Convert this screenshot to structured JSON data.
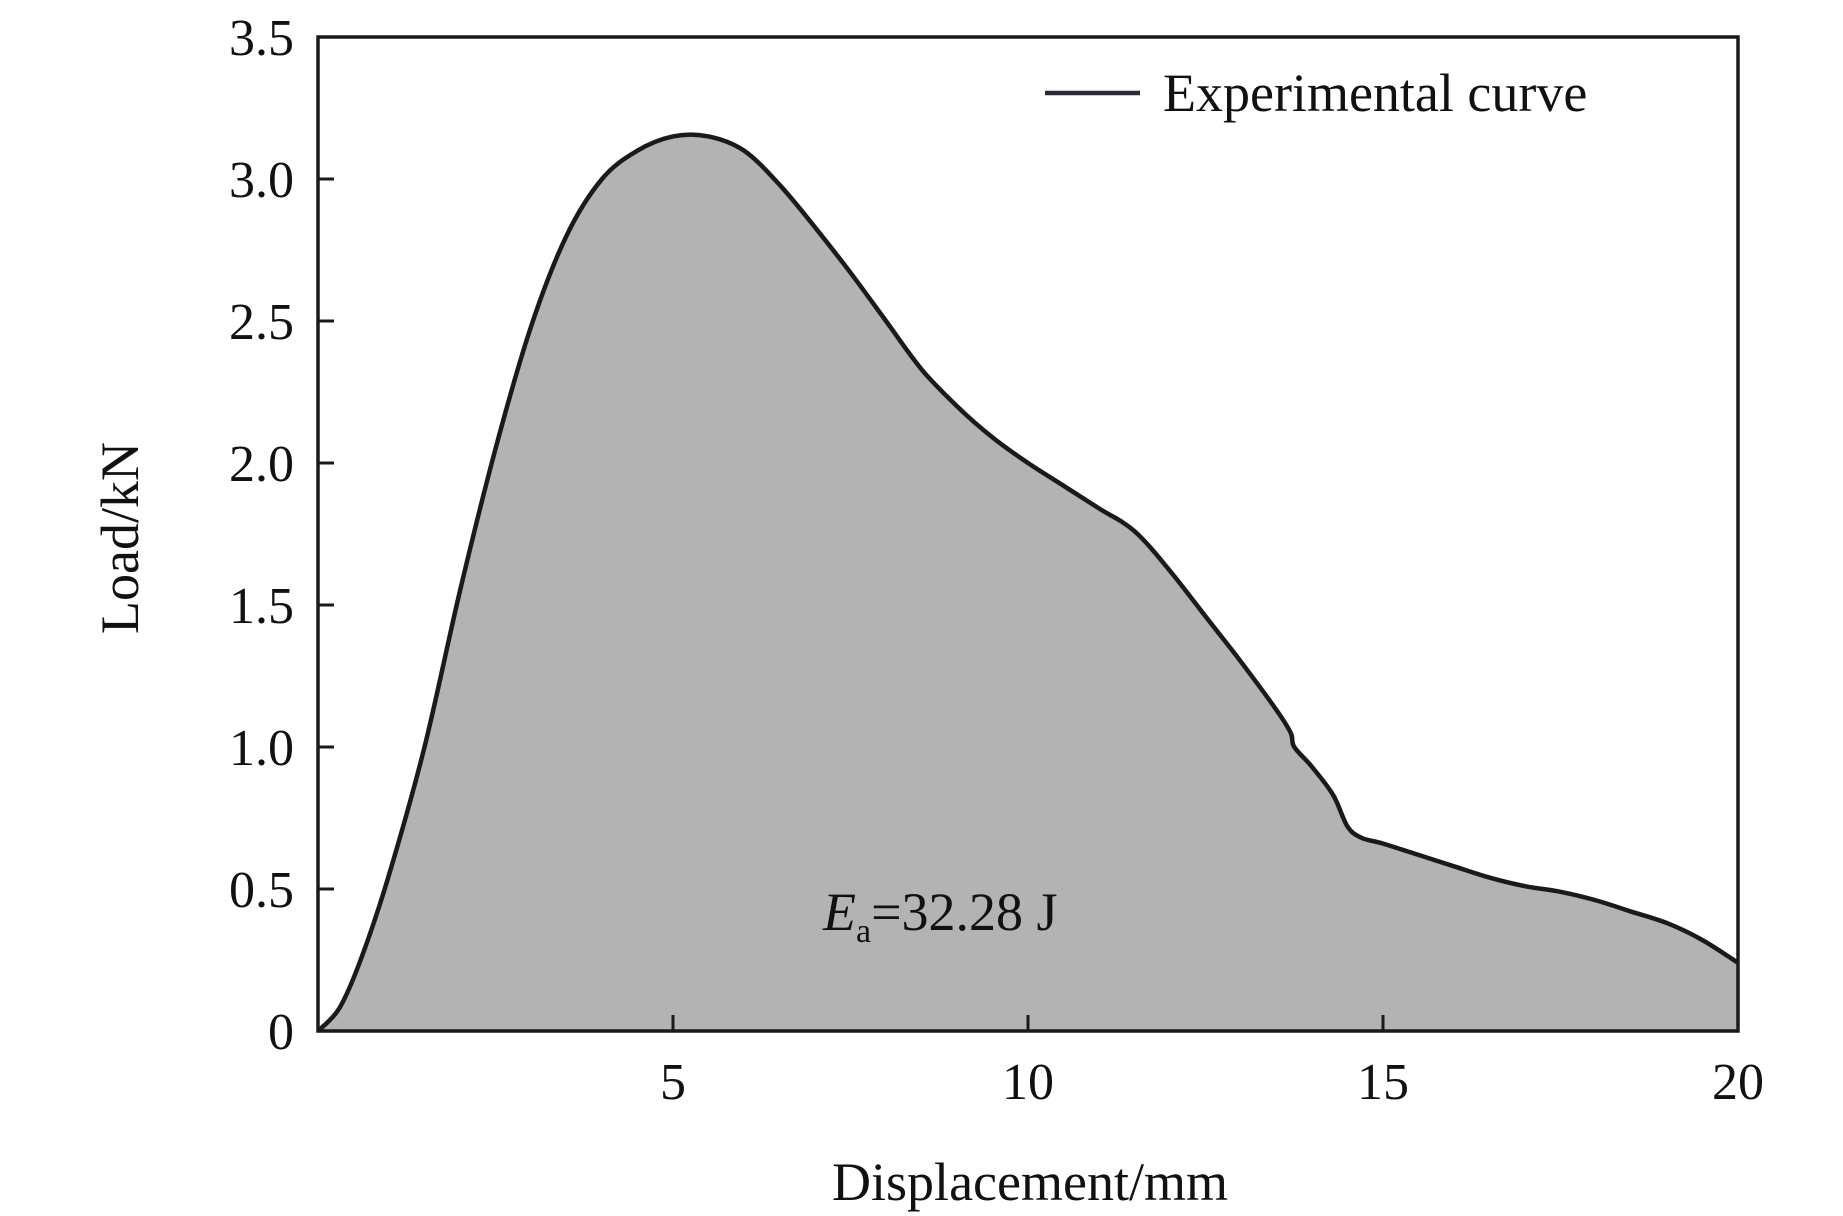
{
  "chart_data": {
    "type": "area",
    "xlabel": "Displacement/mm",
    "ylabel": "Load/kN",
    "xlim": [
      0,
      20
    ],
    "ylim": [
      0,
      3.5
    ],
    "xticks": [
      5,
      10,
      15,
      20
    ],
    "xtick_labels": [
      "5",
      "10",
      "15",
      "20"
    ],
    "yticks": [
      0,
      0.5,
      1.0,
      1.5,
      2.0,
      2.5,
      3.0,
      3.5
    ],
    "ytick_labels": [
      "0",
      "0.5",
      "1.0",
      "1.5",
      "2.0",
      "2.5",
      "3.0",
      "3.5"
    ],
    "grid": false,
    "legend_position": "top-right",
    "annotation": {
      "symbol": "E",
      "subscript": "a",
      "text": "=32.28 J"
    },
    "series": [
      {
        "name": "Experimental curve",
        "x": [
          0,
          0.3,
          0.6,
          1.0,
          1.5,
          2.0,
          2.5,
          3.0,
          3.5,
          4.0,
          4.5,
          5.0,
          5.5,
          6.0,
          6.5,
          7.0,
          7.5,
          8.0,
          8.5,
          9.0,
          9.5,
          10.0,
          10.5,
          11.0,
          11.5,
          12.0,
          12.5,
          13.0,
          13.5,
          13.7,
          13.75,
          14.0,
          14.3,
          14.5,
          14.7,
          15.0,
          15.5,
          16.0,
          16.5,
          17.0,
          17.5,
          18.0,
          18.5,
          19.0,
          19.5,
          20.0
        ],
        "y": [
          0,
          0.08,
          0.25,
          0.55,
          1.0,
          1.55,
          2.05,
          2.48,
          2.8,
          3.0,
          3.1,
          3.15,
          3.15,
          3.1,
          2.98,
          2.83,
          2.67,
          2.5,
          2.33,
          2.2,
          2.09,
          2.0,
          1.92,
          1.84,
          1.76,
          1.62,
          1.46,
          1.3,
          1.13,
          1.05,
          1.0,
          0.93,
          0.83,
          0.72,
          0.68,
          0.66,
          0.62,
          0.58,
          0.54,
          0.51,
          0.49,
          0.46,
          0.42,
          0.38,
          0.32,
          0.24
        ]
      }
    ],
    "colors": {
      "fill": "#b3b3b3",
      "line": "#1a1a1a",
      "legend_line": "#2a2a3a",
      "frame": "#1a1a1a"
    }
  }
}
